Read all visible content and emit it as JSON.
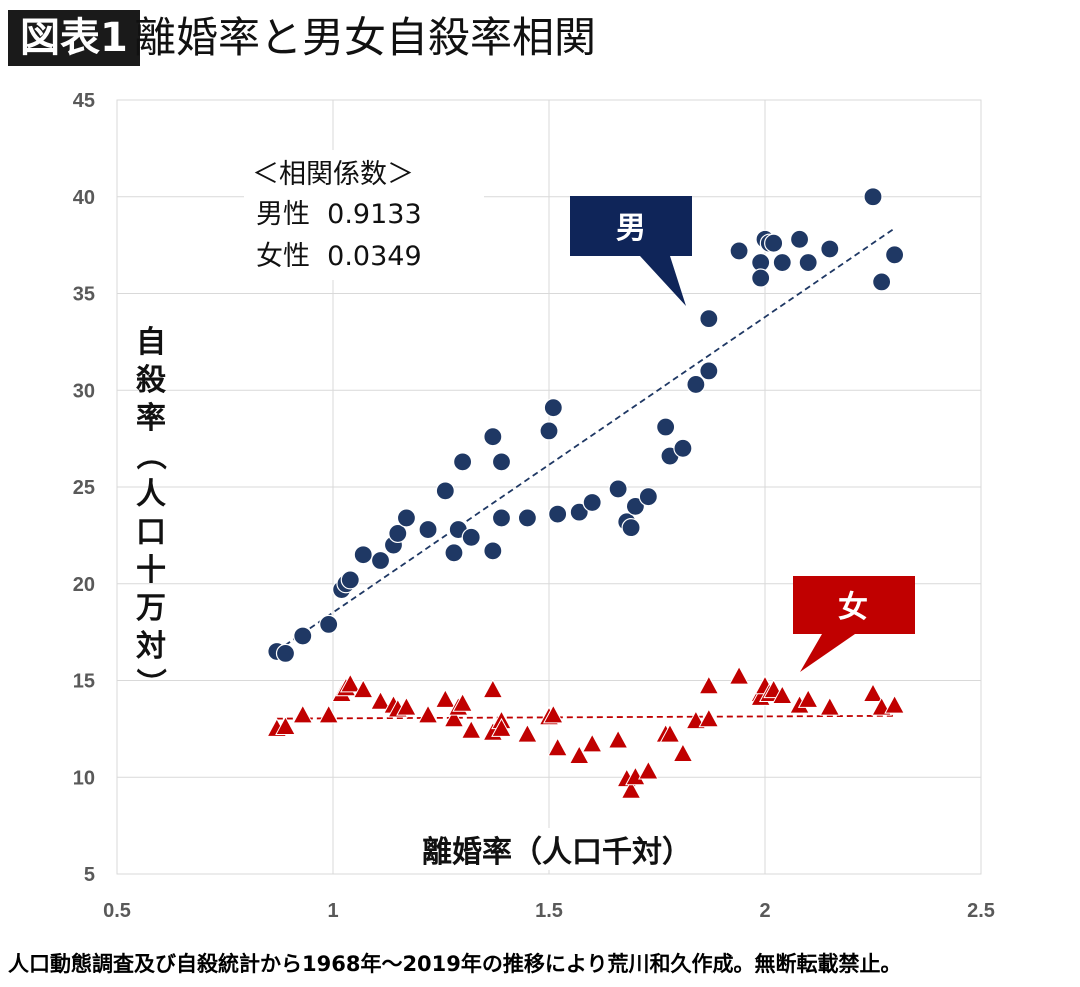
{
  "header": {
    "badge": "図表1",
    "title": "離婚率と男女自殺率相関"
  },
  "footer": "人口動態調査及び自殺統計から1968年〜2019年の推移により荒川和久作成。無断転載禁止。",
  "correlation_box": {
    "heading": "＜相関係数＞",
    "lines": [
      "男性  0.9133",
      "女性  0.0349"
    ]
  },
  "callouts": {
    "male": {
      "label": "男",
      "color": "#0f2559"
    },
    "female": {
      "label": "女",
      "color": "#c00000"
    }
  },
  "chart_data": {
    "type": "scatter",
    "xlabel": "離婚率（人口千対）",
    "ylabel": "自殺率（人口十万対）",
    "xlim": [
      0.5,
      2.5
    ],
    "ylim": [
      5,
      45
    ],
    "xticks": [
      "0.5",
      "1",
      "1.5",
      "2",
      "2.5"
    ],
    "yticks": [
      "5",
      "10",
      "15",
      "20",
      "25",
      "30",
      "35",
      "40",
      "45"
    ],
    "grid": true,
    "series": [
      {
        "name": "男",
        "marker": "circle",
        "color": "#1f3864",
        "trendline": true,
        "points": [
          [
            0.87,
            16.5
          ],
          [
            0.89,
            16.4
          ],
          [
            0.93,
            17.3
          ],
          [
            0.99,
            17.9
          ],
          [
            1.02,
            19.7
          ],
          [
            1.03,
            20.0
          ],
          [
            1.04,
            20.2
          ],
          [
            1.07,
            21.5
          ],
          [
            1.11,
            21.2
          ],
          [
            1.14,
            22.0
          ],
          [
            1.15,
            22.6
          ],
          [
            1.17,
            23.4
          ],
          [
            1.22,
            22.8
          ],
          [
            1.26,
            24.8
          ],
          [
            1.28,
            21.6
          ],
          [
            1.29,
            22.8
          ],
          [
            1.3,
            26.3
          ],
          [
            1.32,
            22.4
          ],
          [
            1.37,
            21.7
          ],
          [
            1.37,
            27.6
          ],
          [
            1.39,
            26.3
          ],
          [
            1.39,
            23.4
          ],
          [
            1.45,
            23.4
          ],
          [
            1.5,
            27.9
          ],
          [
            1.51,
            29.1
          ],
          [
            1.52,
            23.6
          ],
          [
            1.57,
            23.7
          ],
          [
            1.6,
            24.2
          ],
          [
            1.66,
            24.9
          ],
          [
            1.68,
            23.2
          ],
          [
            1.69,
            22.9
          ],
          [
            1.7,
            24.0
          ],
          [
            1.73,
            24.5
          ],
          [
            1.77,
            28.1
          ],
          [
            1.78,
            26.6
          ],
          [
            1.81,
            27.0
          ],
          [
            1.84,
            30.3
          ],
          [
            1.87,
            33.7
          ],
          [
            1.87,
            31.0
          ],
          [
            1.94,
            37.2
          ],
          [
            1.99,
            36.6
          ],
          [
            1.99,
            35.8
          ],
          [
            2.0,
            37.8
          ],
          [
            2.01,
            37.6
          ],
          [
            2.02,
            37.6
          ],
          [
            2.04,
            36.6
          ],
          [
            2.08,
            37.8
          ],
          [
            2.1,
            36.6
          ],
          [
            2.15,
            37.3
          ],
          [
            2.25,
            40.0
          ],
          [
            2.27,
            35.6
          ],
          [
            2.3,
            37.0
          ]
        ]
      },
      {
        "name": "女",
        "marker": "triangle",
        "color": "#c00000",
        "trendline": true,
        "points": [
          [
            0.87,
            12.5
          ],
          [
            0.89,
            12.6
          ],
          [
            0.93,
            13.2
          ],
          [
            0.99,
            13.2
          ],
          [
            1.02,
            14.3
          ],
          [
            1.03,
            14.6
          ],
          [
            1.04,
            14.8
          ],
          [
            1.07,
            14.5
          ],
          [
            1.11,
            13.9
          ],
          [
            1.14,
            13.7
          ],
          [
            1.15,
            13.5
          ],
          [
            1.17,
            13.6
          ],
          [
            1.22,
            13.2
          ],
          [
            1.26,
            14.0
          ],
          [
            1.28,
            13.0
          ],
          [
            1.29,
            13.6
          ],
          [
            1.3,
            13.8
          ],
          [
            1.32,
            12.4
          ],
          [
            1.37,
            12.3
          ],
          [
            1.37,
            14.5
          ],
          [
            1.39,
            12.9
          ],
          [
            1.39,
            12.5
          ],
          [
            1.45,
            12.2
          ],
          [
            1.5,
            13.1
          ],
          [
            1.51,
            13.2
          ],
          [
            1.52,
            11.5
          ],
          [
            1.57,
            11.1
          ],
          [
            1.6,
            11.7
          ],
          [
            1.66,
            11.9
          ],
          [
            1.68,
            9.9
          ],
          [
            1.69,
            9.3
          ],
          [
            1.7,
            10.0
          ],
          [
            1.73,
            10.3
          ],
          [
            1.77,
            12.2
          ],
          [
            1.78,
            12.2
          ],
          [
            1.81,
            11.2
          ],
          [
            1.84,
            12.9
          ],
          [
            1.87,
            14.7
          ],
          [
            1.87,
            13.0
          ],
          [
            1.94,
            15.2
          ],
          [
            1.99,
            14.3
          ],
          [
            1.99,
            14.1
          ],
          [
            2.0,
            14.7
          ],
          [
            2.01,
            14.3
          ],
          [
            2.02,
            14.5
          ],
          [
            2.04,
            14.2
          ],
          [
            2.08,
            13.7
          ],
          [
            2.1,
            14.0
          ],
          [
            2.15,
            13.6
          ],
          [
            2.25,
            14.3
          ],
          [
            2.27,
            13.6
          ],
          [
            2.3,
            13.7
          ]
        ]
      }
    ]
  }
}
